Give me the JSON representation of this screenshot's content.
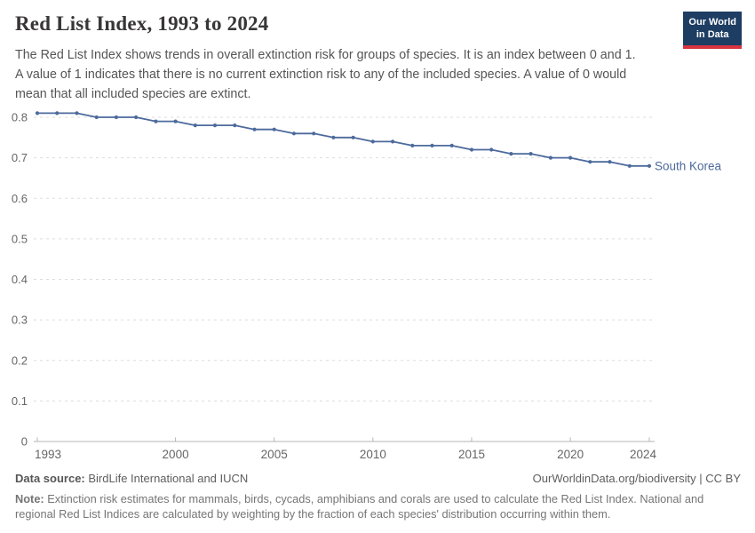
{
  "header": {
    "title": "Red List Index, 1993 to 2024",
    "subtitle_lines": [
      "The Red List Index shows trends in overall extinction risk for groups of species. It is an index between 0 and 1.",
      "A value of 1 indicates that there is no current extinction risk to any of the included species. A value of 0 would",
      "mean that all included species are extinct."
    ],
    "logo_line1": "Our World",
    "logo_line2": "in Data"
  },
  "theme": {
    "line_color": "#4c6a9c",
    "grid_color": "#dddddd",
    "axis_color": "#b5b5b5",
    "tick_label_color": "#666666",
    "logo_bg": "#1d3d63",
    "logo_red": "#d7343f",
    "title_color": "#383636"
  },
  "chart_data": {
    "type": "line",
    "title": "Red List Index, 1993 to 2024",
    "xlabel": "",
    "ylabel": "",
    "x": [
      1993,
      1994,
      1995,
      1996,
      1997,
      1998,
      1999,
      2000,
      2001,
      2002,
      2003,
      2004,
      2005,
      2006,
      2007,
      2008,
      2009,
      2010,
      2011,
      2012,
      2013,
      2014,
      2015,
      2016,
      2017,
      2018,
      2019,
      2020,
      2021,
      2022,
      2023,
      2024
    ],
    "series": [
      {
        "name": "South Korea",
        "color": "#4c6a9c",
        "values": [
          0.81,
          0.81,
          0.81,
          0.8,
          0.8,
          0.8,
          0.79,
          0.79,
          0.78,
          0.78,
          0.78,
          0.77,
          0.77,
          0.76,
          0.76,
          0.75,
          0.75,
          0.74,
          0.74,
          0.73,
          0.73,
          0.73,
          0.72,
          0.72,
          0.71,
          0.71,
          0.7,
          0.7,
          0.69,
          0.69,
          0.68,
          0.68
        ]
      }
    ],
    "ylim": [
      0,
      0.85
    ],
    "yticks": [
      0,
      0.1,
      0.2,
      0.3,
      0.4,
      0.5,
      0.6,
      0.7,
      0.8
    ],
    "xticks": [
      1993,
      2000,
      2005,
      2010,
      2015,
      2020,
      2024
    ],
    "grid": "horizontal-dashed",
    "legend_position": "end-of-line-label"
  },
  "footer": {
    "source_label": "Data source:",
    "source_text": " BirdLife International and IUCN",
    "attribution": "OurWorldinData.org/biodiversity | CC BY",
    "note_label": "Note:",
    "note_line1": " Extinction risk estimates for mammals, birds, cycads, amphibians and corals are used to calculate the Red List Index. National and",
    "note_line2": "regional Red List Indices are calculated by weighting by the fraction of each species' distribution occurring within them."
  }
}
